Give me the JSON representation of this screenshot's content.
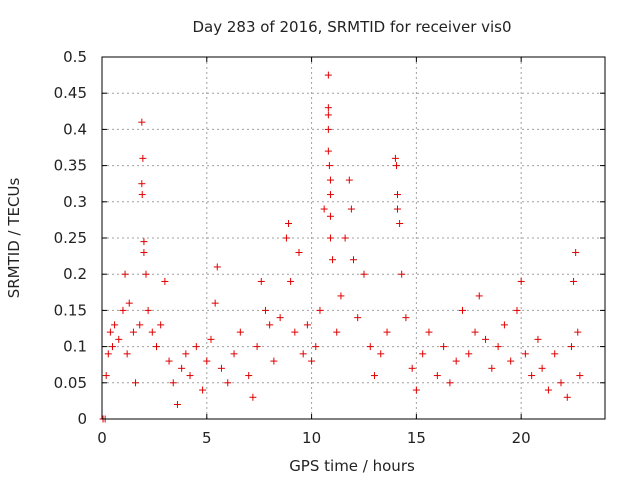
{
  "chart_data": {
    "type": "scatter",
    "title": "Day 283 of 2016, SRMTID for receiver vis0",
    "xlabel": "GPS time / hours",
    "ylabel": "SRMTID / TECUs",
    "xlim": [
      0,
      24
    ],
    "ylim": [
      0,
      0.5
    ],
    "xticks": [
      0,
      5,
      10,
      15,
      20
    ],
    "yticks": [
      0,
      0.05,
      0.1,
      0.15,
      0.2,
      0.25,
      0.3,
      0.35,
      0.4,
      0.45,
      0.5
    ],
    "ytick_labels": [
      "0",
      "0.05",
      "0.1",
      "0.15",
      "0.2",
      "0.25",
      "0.3",
      "0.35",
      "0.4",
      "0.45",
      "0.5"
    ],
    "grid": true,
    "marker": "+",
    "color": "#e00000",
    "series": [
      {
        "name": "SRMTID",
        "points": [
          [
            0.05,
            0.0
          ],
          [
            0.15,
            0.0
          ],
          [
            0.2,
            0.06
          ],
          [
            0.3,
            0.09
          ],
          [
            0.4,
            0.12
          ],
          [
            0.5,
            0.1
          ],
          [
            0.6,
            0.13
          ],
          [
            0.8,
            0.11
          ],
          [
            1.0,
            0.15
          ],
          [
            1.1,
            0.2
          ],
          [
            1.2,
            0.09
          ],
          [
            1.3,
            0.16
          ],
          [
            1.5,
            0.12
          ],
          [
            1.6,
            0.05
          ],
          [
            1.8,
            0.13
          ],
          [
            1.9,
            0.41
          ],
          [
            1.95,
            0.36
          ],
          [
            1.9,
            0.325
          ],
          [
            1.92,
            0.31
          ],
          [
            2.0,
            0.245
          ],
          [
            2.0,
            0.23
          ],
          [
            2.1,
            0.2
          ],
          [
            2.2,
            0.15
          ],
          [
            2.4,
            0.12
          ],
          [
            2.6,
            0.1
          ],
          [
            2.8,
            0.13
          ],
          [
            3.0,
            0.19
          ],
          [
            3.2,
            0.08
          ],
          [
            3.4,
            0.05
          ],
          [
            3.6,
            0.02
          ],
          [
            3.8,
            0.07
          ],
          [
            4.0,
            0.09
          ],
          [
            4.2,
            0.06
          ],
          [
            4.5,
            0.1
          ],
          [
            4.8,
            0.04
          ],
          [
            5.0,
            0.08
          ],
          [
            5.2,
            0.11
          ],
          [
            5.4,
            0.16
          ],
          [
            5.5,
            0.21
          ],
          [
            5.7,
            0.07
          ],
          [
            6.0,
            0.05
          ],
          [
            6.3,
            0.09
          ],
          [
            6.6,
            0.12
          ],
          [
            7.0,
            0.06
          ],
          [
            7.2,
            0.03
          ],
          [
            7.4,
            0.1
          ],
          [
            7.6,
            0.19
          ],
          [
            7.8,
            0.15
          ],
          [
            8.0,
            0.13
          ],
          [
            8.2,
            0.08
          ],
          [
            8.5,
            0.14
          ],
          [
            8.8,
            0.25
          ],
          [
            8.9,
            0.27
          ],
          [
            9.0,
            0.19
          ],
          [
            9.2,
            0.12
          ],
          [
            9.4,
            0.23
          ],
          [
            9.6,
            0.09
          ],
          [
            9.8,
            0.13
          ],
          [
            10.0,
            0.08
          ],
          [
            10.2,
            0.1
          ],
          [
            10.4,
            0.15
          ],
          [
            10.6,
            0.29
          ],
          [
            10.8,
            0.475
          ],
          [
            10.8,
            0.43
          ],
          [
            10.8,
            0.42
          ],
          [
            10.8,
            0.4
          ],
          [
            10.8,
            0.37
          ],
          [
            10.85,
            0.35
          ],
          [
            10.9,
            0.33
          ],
          [
            10.9,
            0.31
          ],
          [
            10.9,
            0.28
          ],
          [
            10.9,
            0.25
          ],
          [
            11.0,
            0.22
          ],
          [
            11.2,
            0.12
          ],
          [
            11.4,
            0.17
          ],
          [
            11.6,
            0.25
          ],
          [
            11.8,
            0.33
          ],
          [
            11.9,
            0.29
          ],
          [
            12.0,
            0.22
          ],
          [
            12.2,
            0.14
          ],
          [
            12.5,
            0.2
          ],
          [
            12.8,
            0.1
          ],
          [
            13.0,
            0.06
          ],
          [
            13.3,
            0.09
          ],
          [
            13.6,
            0.12
          ],
          [
            14.0,
            0.36
          ],
          [
            14.05,
            0.35
          ],
          [
            14.1,
            0.31
          ],
          [
            14.1,
            0.29
          ],
          [
            14.2,
            0.27
          ],
          [
            14.3,
            0.2
          ],
          [
            14.5,
            0.14
          ],
          [
            14.8,
            0.07
          ],
          [
            15.0,
            0.04
          ],
          [
            15.3,
            0.09
          ],
          [
            15.6,
            0.12
          ],
          [
            16.0,
            0.06
          ],
          [
            16.3,
            0.1
          ],
          [
            16.6,
            0.05
          ],
          [
            16.9,
            0.08
          ],
          [
            17.2,
            0.15
          ],
          [
            17.5,
            0.09
          ],
          [
            17.8,
            0.12
          ],
          [
            18.0,
            0.17
          ],
          [
            18.3,
            0.11
          ],
          [
            18.6,
            0.07
          ],
          [
            18.9,
            0.1
          ],
          [
            19.2,
            0.13
          ],
          [
            19.5,
            0.08
          ],
          [
            19.8,
            0.15
          ],
          [
            20.0,
            0.19
          ],
          [
            20.2,
            0.09
          ],
          [
            20.5,
            0.06
          ],
          [
            20.8,
            0.11
          ],
          [
            21.0,
            0.07
          ],
          [
            21.3,
            0.04
          ],
          [
            21.6,
            0.09
          ],
          [
            21.9,
            0.05
          ],
          [
            22.2,
            0.03
          ],
          [
            22.4,
            0.1
          ],
          [
            22.5,
            0.19
          ],
          [
            22.6,
            0.23
          ],
          [
            22.7,
            0.12
          ],
          [
            22.8,
            0.06
          ]
        ]
      }
    ]
  }
}
